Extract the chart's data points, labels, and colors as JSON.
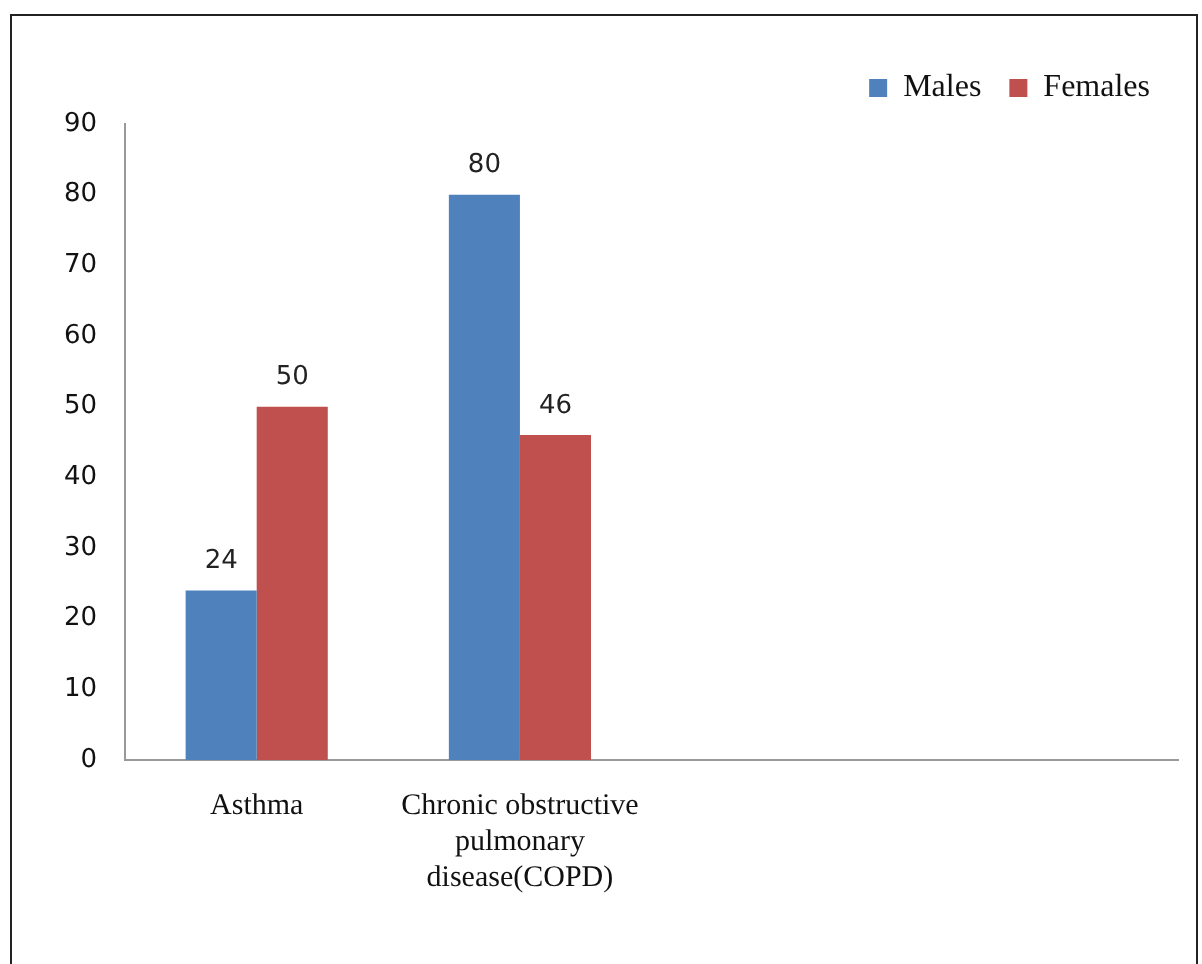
{
  "chart_data": {
    "type": "bar",
    "categories": [
      "Asthma",
      "Chronic obstructive pulmonary disease(COPD)",
      null,
      null
    ],
    "series": [
      {
        "name": "Males",
        "color": "#4f81bd",
        "values": [
          24,
          80,
          null,
          null
        ]
      },
      {
        "name": "Females",
        "color": "#c0504d",
        "values": [
          50,
          46,
          null,
          null
        ]
      }
    ],
    "ylim": [
      0,
      90
    ],
    "yticks": [
      0,
      10,
      20,
      30,
      40,
      50,
      60,
      70,
      80,
      90
    ],
    "grid": false,
    "legend": "top right",
    "data_labels": true
  }
}
